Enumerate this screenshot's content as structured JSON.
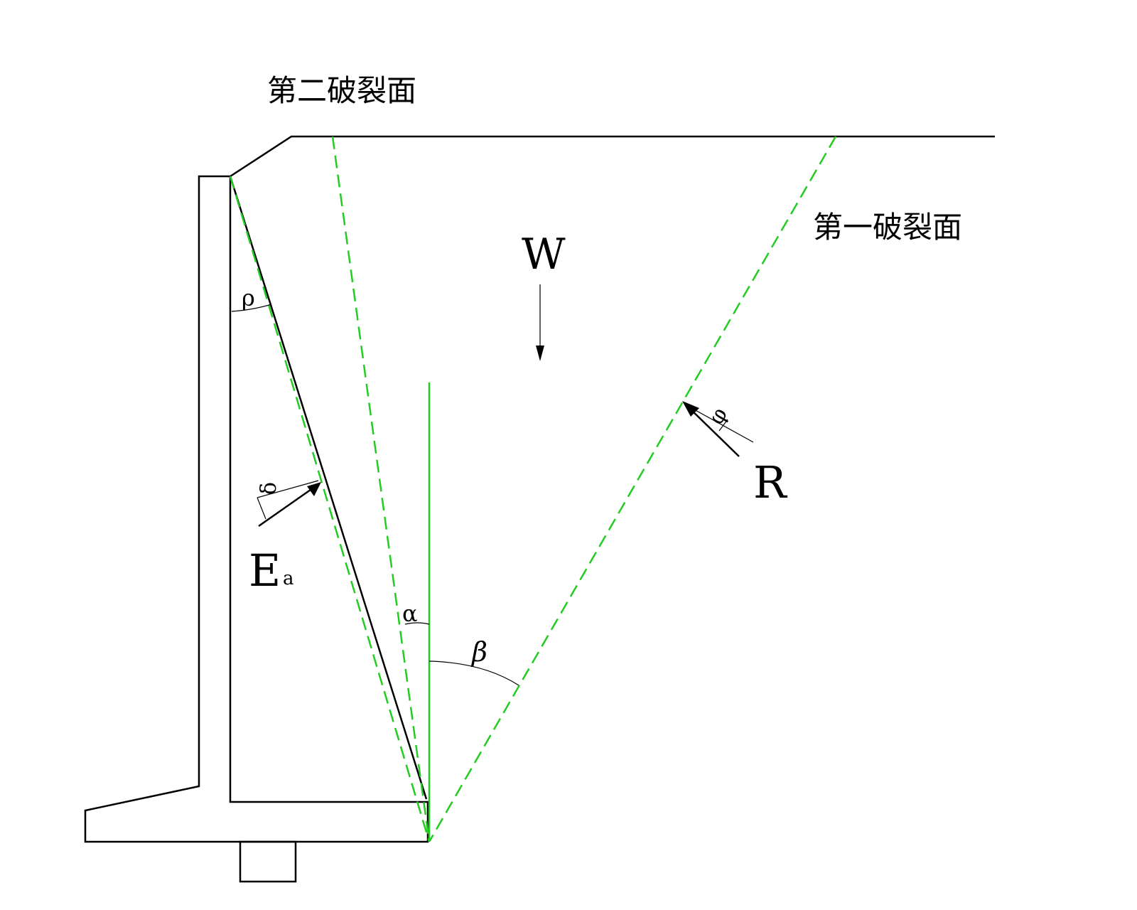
{
  "labels": {
    "second_failure_plane": "第二破裂面",
    "first_failure_plane": "第一破裂面",
    "weight": "W",
    "reaction": "R",
    "earth_pressure_main": "E",
    "earth_pressure_sub": "a",
    "angle_rho": "ρ",
    "angle_delta": "δ",
    "angle_alpha": "α",
    "angle_beta": "β",
    "angle_phi": "φ"
  },
  "colors": {
    "structure": "#000000",
    "failure_planes": "#22cc22"
  }
}
